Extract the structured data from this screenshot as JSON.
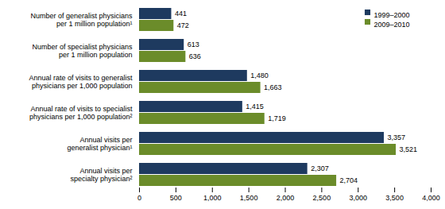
{
  "chart_data": {
    "type": "bar",
    "orientation": "horizontal",
    "categories": [
      "Number of generalist physicians\nper 1 million population¹",
      "Number of specialist physicians\nper 1 million population",
      "Annual rate of visits to generalist\nphysicians per 1,000 population",
      "Annual rate of visits to specialist\nphysicians per 1,000 population²",
      "Annual visits per\ngeneralist physician¹",
      "Annual visits per\nspecialty physician²"
    ],
    "series": [
      {
        "name": "1999–2000",
        "color": "#1e3a5f",
        "values": [
          441,
          613,
          1480,
          1415,
          3357,
          2307
        ],
        "value_labels": [
          "441",
          "613",
          "1,480",
          "1,415",
          "3,357",
          "2,307"
        ]
      },
      {
        "name": "2009–2010",
        "color": "#6b8c2a",
        "values": [
          472,
          636,
          1663,
          1719,
          3521,
          2704
        ],
        "value_labels": [
          "472",
          "636",
          "1,663",
          "1,719",
          "3,521",
          "2,704"
        ]
      }
    ],
    "xlim": [
      0,
      4000
    ],
    "xticks": [
      0,
      500,
      {
        "value": 1000,
        "label": "1,000"
      },
      {
        "value": 1500,
        "label": "1,500"
      },
      {
        "value": 2000,
        "label": "2,000"
      },
      {
        "value": 2500,
        "label": "2,500"
      },
      {
        "value": 3000,
        "label": "3,000"
      },
      {
        "value": 3500,
        "label": "3,500"
      },
      {
        "value": 4000,
        "label": "4,000"
      }
    ],
    "data_labels": true,
    "legend": "upper right",
    "grid": false
  }
}
